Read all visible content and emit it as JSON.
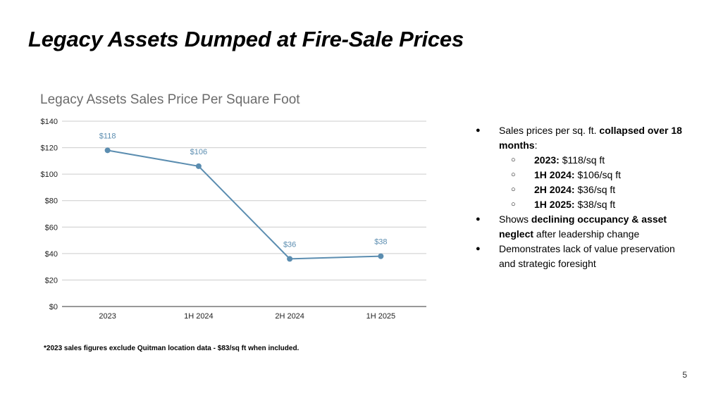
{
  "slide": {
    "title": "Legacy Assets Dumped at Fire-Sale Prices",
    "page_number": "5"
  },
  "chart_data": {
    "type": "line",
    "title": "Legacy Assets Sales Price Per Square Foot",
    "categories": [
      "2023",
      "1H 2024",
      "2H 2024",
      "1H 2025"
    ],
    "series": [
      {
        "values": [
          118,
          106,
          36,
          38
        ],
        "data_labels": [
          "$118",
          "$106",
          "$36",
          "$38"
        ]
      }
    ],
    "ylim": [
      0,
      140
    ],
    "yticks": [
      0,
      20,
      40,
      60,
      80,
      100,
      120,
      140
    ],
    "ytick_labels": [
      "$0",
      "$20",
      "$40",
      "$60",
      "$80",
      "$100",
      "$120",
      "$140"
    ],
    "grid": true,
    "line_color": "#5b8db0",
    "label_color": "#5b8db0",
    "footnote": "*2023 sales figures exclude Quitman location data - $83/sq ft when included."
  },
  "bullets": {
    "b1": {
      "pre": "Sales prices per sq. ft. ",
      "bold": "collapsed over 18 months",
      "post": ":"
    },
    "sub": [
      {
        "bold": "2023:",
        "text": " $118/sq ft"
      },
      {
        "bold": "1H 2024:",
        "text": " $106/sq ft"
      },
      {
        "bold": "2H 2024:",
        "text": " $36/sq ft"
      },
      {
        "bold": "1H 2025:",
        "text": " $38/sq ft"
      }
    ],
    "b2": {
      "pre": "Shows ",
      "bold": "declining occupancy & asset neglect",
      "post": " after leadership change"
    },
    "b3": {
      "text": "Demonstrates lack of value preservation and strategic foresight"
    }
  }
}
